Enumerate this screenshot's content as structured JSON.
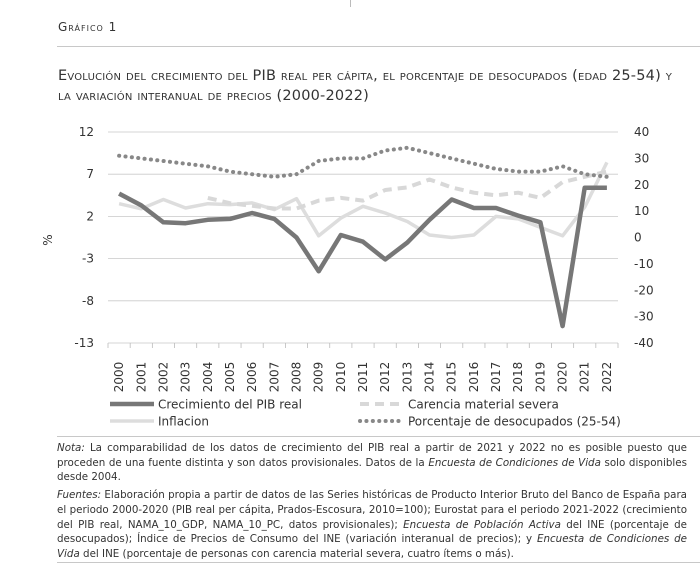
{
  "figure_label": "Gráfico 1",
  "title": "Evolución del crecimiento del PIB real per cápita, el porcentaje de desocupados (edad 25-54) y la variación interanual de precios (2000-2022)",
  "chart_data": {
    "type": "line",
    "categories": [
      "2000",
      "2001",
      "2002",
      "2003",
      "2004",
      "2005",
      "2006",
      "2007",
      "2008",
      "2009",
      "2010",
      "2011",
      "2012",
      "2013",
      "2014",
      "2015",
      "2016",
      "2017",
      "2018",
      "2019",
      "2020",
      "2021",
      "2022"
    ],
    "ylabel_left": "%",
    "left_axis": {
      "ylim": [
        -13,
        12
      ],
      "ticks": [
        12,
        7,
        2,
        -3,
        -8,
        -13
      ]
    },
    "right_axis": {
      "ylim": [
        -40,
        40
      ],
      "ticks": [
        40,
        30,
        20,
        10,
        0,
        -10,
        -20,
        -30,
        -40
      ]
    },
    "series": [
      {
        "name": "Crecimiento del PIB real",
        "axis": "left",
        "color": "#777777",
        "style": "solid-thick",
        "values": [
          4.7,
          3.3,
          1.3,
          1.2,
          1.6,
          1.7,
          2.4,
          1.7,
          -0.5,
          -4.5,
          -0.2,
          -1.0,
          -3.1,
          -1.1,
          1.6,
          4.0,
          3.0,
          3.0,
          2.1,
          1.3,
          -11.0,
          5.4,
          5.4
        ]
      },
      {
        "name": "Carencia material severa",
        "axis": "right",
        "color": "#d8d8d8",
        "style": "dashed",
        "values": [
          null,
          null,
          null,
          null,
          15.0,
          13.0,
          12.0,
          11.0,
          11.0,
          14.0,
          15.0,
          14.0,
          18.0,
          19.0,
          22.0,
          19.0,
          17.0,
          16.0,
          17.0,
          15.0,
          21.0,
          23.0,
          25.0
        ]
      },
      {
        "name": "Inflacion",
        "axis": "left",
        "color": "#dddddd",
        "style": "solid",
        "values": [
          3.5,
          2.9,
          4.0,
          3.0,
          3.5,
          3.4,
          3.6,
          2.8,
          4.1,
          -0.3,
          1.8,
          3.2,
          2.4,
          1.4,
          -0.2,
          -0.5,
          -0.2,
          2.0,
          1.7,
          0.7,
          -0.3,
          3.1,
          8.4
        ]
      },
      {
        "name": "Porcentaje de desocupados (25-54)",
        "axis": "right",
        "color": "#888888",
        "style": "dotted",
        "values": [
          31.0,
          30.0,
          29.0,
          28.0,
          27.0,
          25.0,
          24.0,
          23.0,
          24.0,
          29.0,
          30.0,
          30.0,
          33.0,
          34.0,
          32.0,
          30.0,
          28.0,
          26.0,
          25.0,
          25.0,
          27.0,
          24.0,
          23.0
        ]
      }
    ],
    "grid": true,
    "legend_position": "bottom"
  },
  "notes": {
    "nota_label": "Nota:",
    "nota_text_1": " La comparabilidad de los datos de crecimiento del PIB real a partir de 2021 y 2022 no es posible puesto que proceden de una fuente distinta y son datos provisionales. Datos de la ",
    "nota_italic": "Encuesta de Condiciones de Vida",
    "nota_text_2": " solo disponibles desde 2004.",
    "fuentes_label": "Fuentes:",
    "fuentes_text_1": " Elaboración propia a partir de datos de las Series históricas de Producto Interior Bruto del Banco de España para el periodo 2000-2020 (PIB real per cápita, Prados-Escosura, 2010=100); Eurostat para el periodo 2021-2022 (crecimiento del PIB real, NAMA_10_GDP, NAMA_10_PC, datos provisionales); ",
    "fuentes_italic_1": "Encuesta de Población Activa",
    "fuentes_text_2": " del INE (porcentaje de desocupados); Índice de Precios de Consumo del INE (variación interanual de precios); y ",
    "fuentes_italic_2": "Encuesta de Condiciones de Vida",
    "fuentes_text_3": " del INE (porcentaje de personas con carencia material severa, cuatro ítems o más)."
  }
}
